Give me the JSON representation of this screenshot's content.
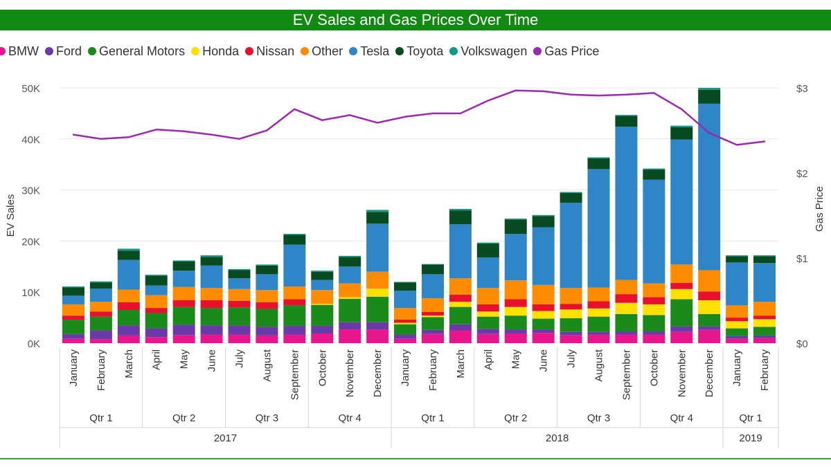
{
  "colors": {
    "BMW": "#e8168c",
    "Ford": "#6a3aa8",
    "General Motors": "#1a8a1a",
    "Honda": "#ffe000",
    "Nissan": "#e8112d",
    "Other": "#ff8c00",
    "Tesla": "#2e86c8",
    "Toyota": "#084b20",
    "Volkswagen": "#14968a",
    "Gas Price": "#9c27b0"
  },
  "chart_data": {
    "type": "bar",
    "title": "EV Sales and Gas Prices Over Time",
    "ylabel": "EV Sales",
    "y2label": "Gas Price",
    "ylim": [
      0,
      50000
    ],
    "y2lim": [
      0,
      3
    ],
    "yticks": [
      "0K",
      "10K",
      "20K",
      "30K",
      "40K",
      "50K"
    ],
    "y2ticks": [
      "$0",
      "$1",
      "$2",
      "$3"
    ],
    "legend": [
      "BMW",
      "Ford",
      "General Motors",
      "Honda",
      "Nissan",
      "Other",
      "Tesla",
      "Toyota",
      "Volkswagen",
      "Gas Price"
    ],
    "categories": [
      "January",
      "February",
      "March",
      "April",
      "May",
      "June",
      "July",
      "August",
      "September",
      "October",
      "November",
      "December",
      "January",
      "February",
      "March",
      "April",
      "May",
      "June",
      "July",
      "August",
      "September",
      "October",
      "November",
      "December",
      "January",
      "February"
    ],
    "quarters": [
      {
        "label": "Qtr 1",
        "start": 0,
        "end": 2
      },
      {
        "label": "Qtr 2",
        "start": 3,
        "end": 5
      },
      {
        "label": "Qtr 3",
        "start": 6,
        "end": 8
      },
      {
        "label": "Qtr 4",
        "start": 9,
        "end": 11
      },
      {
        "label": "Qtr 1",
        "start": 12,
        "end": 14
      },
      {
        "label": "Qtr 2",
        "start": 15,
        "end": 17
      },
      {
        "label": "Qtr 3",
        "start": 18,
        "end": 20
      },
      {
        "label": "Qtr 4",
        "start": 21,
        "end": 23
      },
      {
        "label": "Qtr 1",
        "start": 24,
        "end": 25
      }
    ],
    "years": [
      {
        "label": "2017",
        "start": 0,
        "end": 11
      },
      {
        "label": "2018",
        "start": 12,
        "end": 23
      },
      {
        "label": "2019",
        "start": 24,
        "end": 25
      }
    ],
    "series": [
      {
        "name": "BMW",
        "values": [
          900,
          800,
          1500,
          1200,
          1600,
          1700,
          1700,
          1500,
          1700,
          1900,
          2700,
          2700,
          900,
          1800,
          2500,
          1800,
          1900,
          2000,
          1600,
          1700,
          1700,
          1700,
          2200,
          2600,
          900,
          1000
        ]
      },
      {
        "name": "Ford",
        "values": [
          900,
          1700,
          2000,
          1700,
          2000,
          1800,
          1800,
          1700,
          1700,
          1500,
          1400,
          1400,
          800,
          800,
          1200,
          1000,
          800,
          700,
          600,
          500,
          600,
          600,
          1100,
          700,
          500,
          500
        ]
      },
      {
        "name": "General Motors",
        "values": [
          2800,
          2700,
          3000,
          3000,
          3500,
          3400,
          3500,
          3500,
          4000,
          4100,
          4600,
          5000,
          2000,
          2500,
          3400,
          2400,
          2700,
          2100,
          2700,
          3000,
          3400,
          3200,
          5300,
          2400,
          1500,
          1700
        ]
      },
      {
        "name": "Honda",
        "values": [
          0,
          0,
          0,
          0,
          0,
          0,
          0,
          0,
          0,
          200,
          300,
          1600,
          300,
          300,
          1000,
          1000,
          1700,
          1500,
          1700,
          1600,
          2200,
          2100,
          2000,
          2700,
          1400,
          1500
        ]
      },
      {
        "name": "Nissan",
        "values": [
          800,
          1000,
          1500,
          1000,
          1300,
          1500,
          1300,
          1300,
          1200,
          0,
          0,
          0,
          600,
          700,
          1400,
          1400,
          1500,
          1300,
          1100,
          1400,
          1700,
          1400,
          1200,
          1700,
          700,
          700
        ]
      },
      {
        "name": "Other",
        "values": [
          2200,
          1900,
          2500,
          2500,
          2600,
          2400,
          2300,
          2400,
          2500,
          2700,
          2700,
          3300,
          2300,
          2700,
          3200,
          3200,
          3700,
          3800,
          3100,
          2700,
          2800,
          2700,
          3600,
          4200,
          2400,
          2700
        ]
      },
      {
        "name": "Tesla",
        "values": [
          1700,
          2600,
          5800,
          1900,
          3200,
          4400,
          2100,
          3100,
          8200,
          2000,
          3300,
          9400,
          3400,
          4700,
          10600,
          6000,
          9100,
          11300,
          16700,
          23200,
          30000,
          20300,
          24500,
          32600,
          8400,
          7600
        ]
      },
      {
        "name": "Toyota",
        "values": [
          1600,
          1200,
          1800,
          1900,
          1800,
          1700,
          1600,
          1700,
          1900,
          1600,
          1900,
          2300,
          1600,
          1900,
          2700,
          2700,
          2800,
          2200,
          1900,
          2100,
          2100,
          2000,
          2400,
          2700,
          1200,
          1300
        ]
      },
      {
        "name": "Volkswagen",
        "values": [
          200,
          200,
          400,
          200,
          200,
          300,
          200,
          200,
          200,
          200,
          200,
          400,
          100,
          100,
          300,
          200,
          200,
          200,
          200,
          200,
          200,
          200,
          300,
          400,
          200,
          200
        ]
      }
    ],
    "line": {
      "name": "Gas Price",
      "values": [
        2.45,
        2.4,
        2.42,
        2.51,
        2.49,
        2.45,
        2.4,
        2.5,
        2.75,
        2.62,
        2.68,
        2.59,
        2.66,
        2.7,
        2.7,
        2.85,
        2.97,
        2.96,
        2.92,
        2.91,
        2.92,
        2.94,
        2.75,
        2.47,
        2.33,
        2.37
      ]
    }
  }
}
